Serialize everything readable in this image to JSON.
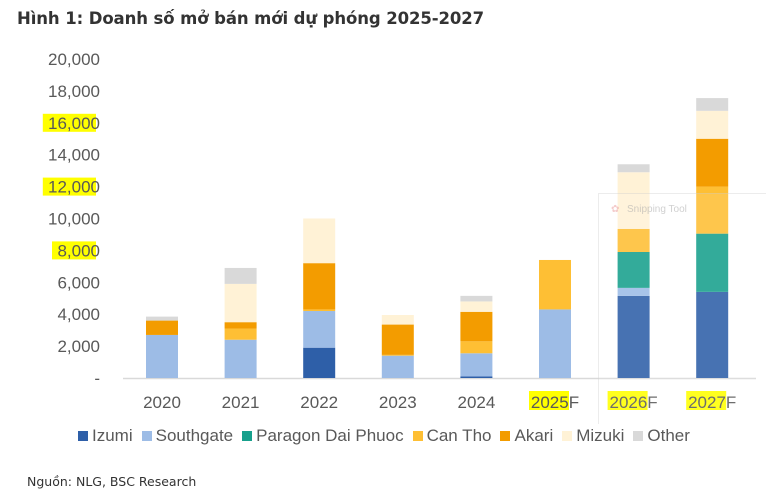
{
  "figure": {
    "title": "Hình 1:  Doanh số mở bán mới dự phóng 2025-2027",
    "source": "Nguồn: NLG, BSC Research",
    "overlay": {
      "label": "Snipping Tool",
      "icon": "snipping-tool-icon"
    }
  },
  "chart_data": {
    "type": "bar",
    "stacked": true,
    "title": "Hình 1:  Doanh số mở bán mới dự phóng 2025-2027",
    "xlabel": "",
    "ylabel": "",
    "ylim": [
      0,
      20000
    ],
    "yticks": [
      0,
      2000,
      4000,
      6000,
      8000,
      10000,
      12000,
      14000,
      16000,
      18000,
      20000
    ],
    "ytick_labels": [
      "-",
      "2,000",
      "4,000",
      "6,000",
      "8,000",
      "10,000",
      "12,000",
      "14,000",
      "16,000",
      "18,000",
      "20,000"
    ],
    "highlighted_yticks": [
      "8,000",
      "12,000",
      "16,000"
    ],
    "grid": false,
    "legend_position": "bottom",
    "categories": [
      "2020",
      "2021",
      "2022",
      "2023",
      "2024",
      "2025F",
      "2026F",
      "2027F"
    ],
    "highlighted_categories": [
      "2025F",
      "2026F",
      "2027F"
    ],
    "series": [
      {
        "name": "Izumi",
        "color": "#2E5FA8",
        "values": [
          0,
          0,
          1900,
          0,
          100,
          0,
          5150,
          5400
        ]
      },
      {
        "name": "Southgate",
        "color": "#9DBCE6",
        "values": [
          2700,
          2400,
          2300,
          1400,
          1450,
          4300,
          500,
          0
        ]
      },
      {
        "name": "Paragon Dai Phuoc",
        "color": "#17A08C",
        "values": [
          0,
          0,
          0,
          0,
          0,
          0,
          2250,
          3650
        ]
      },
      {
        "name": "Can Tho",
        "color": "#FEBF34",
        "values": [
          0,
          700,
          100,
          50,
          750,
          3100,
          1450,
          2950
        ]
      },
      {
        "name": "Akari",
        "color": "#F39C00",
        "values": [
          900,
          400,
          2900,
          1900,
          1850,
          0,
          0,
          3000
        ]
      },
      {
        "name": "Mizuki",
        "color": "#FFF2D6",
        "values": [
          0,
          2400,
          2800,
          600,
          650,
          0,
          3550,
          1750
        ]
      },
      {
        "name": "Other",
        "color": "#D9D9D9",
        "values": [
          250,
          1000,
          0,
          0,
          350,
          0,
          500,
          800
        ]
      }
    ]
  }
}
